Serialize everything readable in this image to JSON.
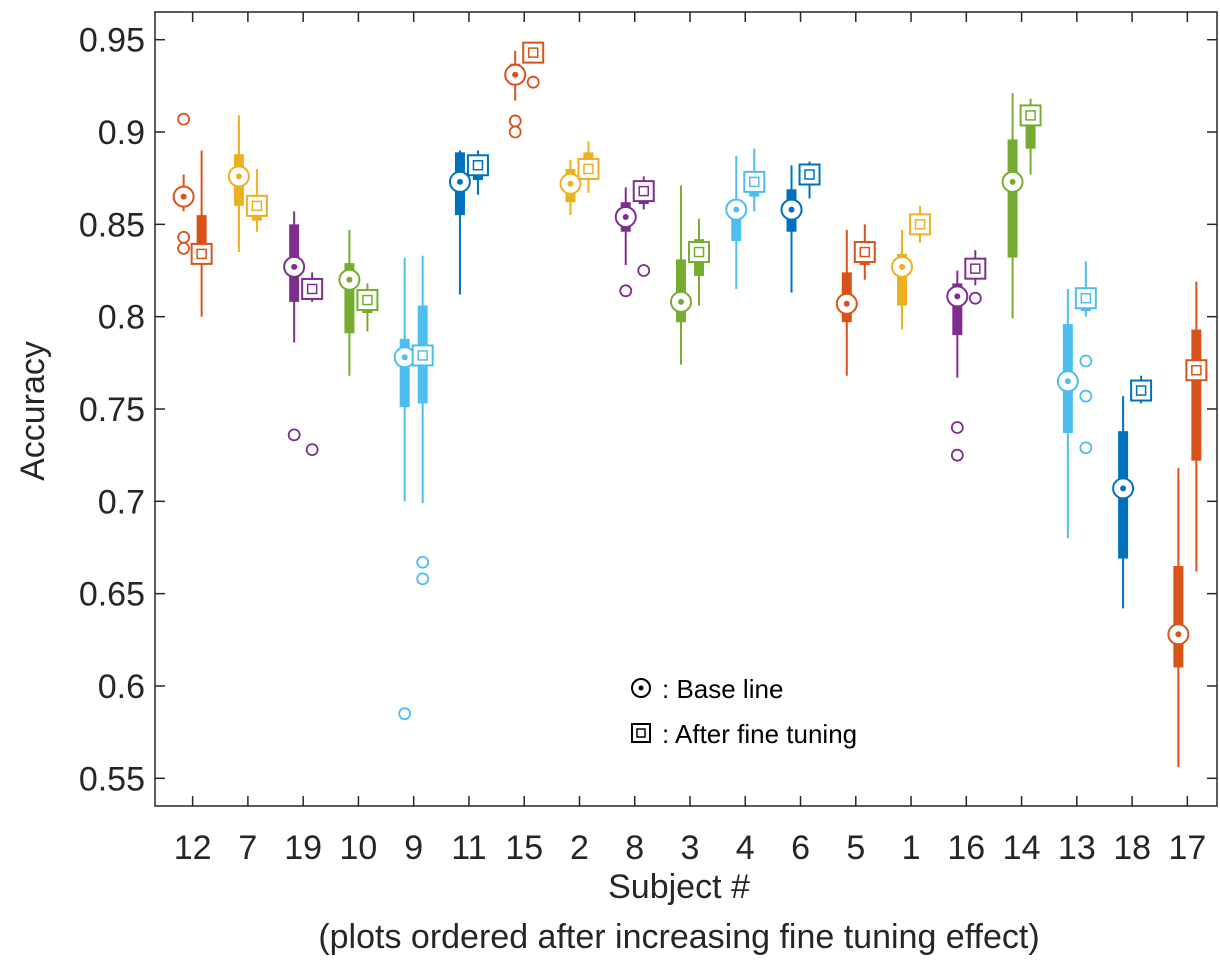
{
  "chart_data": {
    "type": "box",
    "xlabel": "Subject #",
    "xlabel_sub": "(plots ordered after increasing fine tuning effect)",
    "ylabel": "Accuracy",
    "ylim": [
      0.535,
      0.965
    ],
    "yticks": [
      0.55,
      0.6,
      0.65,
      0.7,
      0.75,
      0.8,
      0.85,
      0.9,
      0.95
    ],
    "ytick_labels": [
      "0.55",
      "0.6",
      "0.65",
      "0.7",
      "0.75",
      "0.8",
      "0.85",
      "0.9",
      "0.95"
    ],
    "legend": {
      "placement": "lower-center",
      "entries": [
        {
          "marker": "circle-dot",
          "label": ": Base line"
        },
        {
          "marker": "square-dot",
          "label": ": After fine tuning"
        }
      ]
    },
    "series": [
      {
        "name": "Base line",
        "marker": "circle"
      },
      {
        "name": "After fine tuning",
        "marker": "square"
      }
    ],
    "subjects": [
      {
        "label": "12",
        "color": "#D95319",
        "base": {
          "wl": 0.857,
          "q1": 0.861,
          "med": 0.865,
          "q3": 0.869,
          "wh": 0.877,
          "outliers": [
            0.907,
            0.843,
            0.837
          ]
        },
        "tuned": {
          "wl": 0.8,
          "q1": 0.83,
          "med": 0.834,
          "q3": 0.855,
          "wh": 0.89,
          "outliers": []
        }
      },
      {
        "label": "7",
        "color": "#EDB120",
        "base": {
          "wl": 0.835,
          "q1": 0.86,
          "med": 0.876,
          "q3": 0.888,
          "wh": 0.909,
          "outliers": []
        },
        "tuned": {
          "wl": 0.846,
          "q1": 0.852,
          "med": 0.86,
          "q3": 0.866,
          "wh": 0.88,
          "outliers": []
        }
      },
      {
        "label": "19",
        "color": "#7E2F8E",
        "base": {
          "wl": 0.786,
          "q1": 0.808,
          "med": 0.827,
          "q3": 0.85,
          "wh": 0.857,
          "outliers": [
            0.736
          ]
        },
        "tuned": {
          "wl": 0.808,
          "q1": 0.812,
          "med": 0.815,
          "q3": 0.82,
          "wh": 0.824,
          "outliers": [
            0.728
          ]
        }
      },
      {
        "label": "10",
        "color": "#77AC30",
        "base": {
          "wl": 0.768,
          "q1": 0.791,
          "med": 0.82,
          "q3": 0.829,
          "wh": 0.847,
          "outliers": []
        },
        "tuned": {
          "wl": 0.792,
          "q1": 0.802,
          "med": 0.809,
          "q3": 0.814,
          "wh": 0.818,
          "outliers": []
        }
      },
      {
        "label": "9",
        "color": "#4DBEEE",
        "base": {
          "wl": 0.7,
          "q1": 0.751,
          "med": 0.778,
          "q3": 0.788,
          "wh": 0.832,
          "outliers": [
            0.585
          ]
        },
        "tuned": {
          "wl": 0.699,
          "q1": 0.753,
          "med": 0.779,
          "q3": 0.806,
          "wh": 0.833,
          "outliers": [
            0.667,
            0.658
          ]
        }
      },
      {
        "label": "11",
        "color": "#0072BD",
        "base": {
          "wl": 0.812,
          "q1": 0.855,
          "med": 0.873,
          "q3": 0.889,
          "wh": 0.89,
          "outliers": []
        },
        "tuned": {
          "wl": 0.866,
          "q1": 0.874,
          "med": 0.882,
          "q3": 0.886,
          "wh": 0.89,
          "outliers": []
        }
      },
      {
        "label": "15",
        "color": "#D95319",
        "base": {
          "wl": 0.917,
          "q1": 0.926,
          "med": 0.931,
          "q3": 0.937,
          "wh": 0.944,
          "outliers": [
            0.906,
            0.9
          ]
        },
        "tuned": {
          "wl": 0.938,
          "q1": 0.94,
          "med": 0.943,
          "q3": 0.946,
          "wh": 0.947,
          "outliers": [
            0.927
          ]
        }
      },
      {
        "label": "2",
        "color": "#EDB120",
        "base": {
          "wl": 0.855,
          "q1": 0.862,
          "med": 0.872,
          "q3": 0.88,
          "wh": 0.885,
          "outliers": []
        },
        "tuned": {
          "wl": 0.867,
          "q1": 0.874,
          "med": 0.88,
          "q3": 0.889,
          "wh": 0.895,
          "outliers": []
        }
      },
      {
        "label": "8",
        "color": "#7E2F8E",
        "base": {
          "wl": 0.828,
          "q1": 0.846,
          "med": 0.854,
          "q3": 0.862,
          "wh": 0.87,
          "outliers": [
            0.814
          ]
        },
        "tuned": {
          "wl": 0.858,
          "q1": 0.861,
          "med": 0.868,
          "q3": 0.871,
          "wh": 0.876,
          "outliers": [
            0.825
          ]
        }
      },
      {
        "label": "3",
        "color": "#77AC30",
        "base": {
          "wl": 0.774,
          "q1": 0.797,
          "med": 0.808,
          "q3": 0.831,
          "wh": 0.871,
          "outliers": []
        },
        "tuned": {
          "wl": 0.806,
          "q1": 0.822,
          "med": 0.835,
          "q3": 0.842,
          "wh": 0.853,
          "outliers": []
        }
      },
      {
        "label": "4",
        "color": "#4DBEEE",
        "base": {
          "wl": 0.815,
          "q1": 0.841,
          "med": 0.858,
          "q3": 0.863,
          "wh": 0.887,
          "outliers": []
        },
        "tuned": {
          "wl": 0.857,
          "q1": 0.865,
          "med": 0.873,
          "q3": 0.878,
          "wh": 0.891,
          "outliers": []
        }
      },
      {
        "label": "6",
        "color": "#0072BD",
        "base": {
          "wl": 0.813,
          "q1": 0.846,
          "med": 0.858,
          "q3": 0.869,
          "wh": 0.882,
          "outliers": []
        },
        "tuned": {
          "wl": 0.864,
          "q1": 0.871,
          "med": 0.877,
          "q3": 0.882,
          "wh": 0.884,
          "outliers": []
        }
      },
      {
        "label": "5",
        "color": "#D95319",
        "base": {
          "wl": 0.768,
          "q1": 0.797,
          "med": 0.807,
          "q3": 0.824,
          "wh": 0.847,
          "outliers": []
        },
        "tuned": {
          "wl": 0.82,
          "q1": 0.828,
          "med": 0.835,
          "q3": 0.841,
          "wh": 0.85,
          "outliers": []
        }
      },
      {
        "label": "1",
        "color": "#EDB120",
        "base": {
          "wl": 0.793,
          "q1": 0.806,
          "med": 0.827,
          "q3": 0.834,
          "wh": 0.847,
          "outliers": []
        },
        "tuned": {
          "wl": 0.84,
          "q1": 0.845,
          "med": 0.85,
          "q3": 0.855,
          "wh": 0.86,
          "outliers": []
        }
      },
      {
        "label": "16",
        "color": "#7E2F8E",
        "base": {
          "wl": 0.767,
          "q1": 0.79,
          "med": 0.811,
          "q3": 0.818,
          "wh": 0.825,
          "outliers": [
            0.74,
            0.725
          ]
        },
        "tuned": {
          "wl": 0.817,
          "q1": 0.821,
          "med": 0.826,
          "q3": 0.83,
          "wh": 0.836,
          "outliers": [
            0.81
          ]
        }
      },
      {
        "label": "14",
        "color": "#77AC30",
        "base": {
          "wl": 0.799,
          "q1": 0.832,
          "med": 0.873,
          "q3": 0.896,
          "wh": 0.921,
          "outliers": []
        },
        "tuned": {
          "wl": 0.877,
          "q1": 0.891,
          "med": 0.909,
          "q3": 0.914,
          "wh": 0.918,
          "outliers": []
        }
      },
      {
        "label": "13",
        "color": "#4DBEEE",
        "base": {
          "wl": 0.68,
          "q1": 0.737,
          "med": 0.765,
          "q3": 0.796,
          "wh": 0.815,
          "outliers": []
        },
        "tuned": {
          "wl": 0.8,
          "q1": 0.803,
          "med": 0.81,
          "q3": 0.815,
          "wh": 0.83,
          "outliers": [
            0.776,
            0.757,
            0.729
          ]
        }
      },
      {
        "label": "18",
        "color": "#0072BD",
        "base": {
          "wl": 0.642,
          "q1": 0.669,
          "med": 0.707,
          "q3": 0.738,
          "wh": 0.757,
          "outliers": []
        },
        "tuned": {
          "wl": 0.753,
          "q1": 0.756,
          "med": 0.76,
          "q3": 0.764,
          "wh": 0.768,
          "outliers": []
        }
      },
      {
        "label": "17",
        "color": "#D95319",
        "base": {
          "wl": 0.556,
          "q1": 0.61,
          "med": 0.628,
          "q3": 0.665,
          "wh": 0.718,
          "outliers": []
        },
        "tuned": {
          "wl": 0.662,
          "q1": 0.722,
          "med": 0.771,
          "q3": 0.793,
          "wh": 0.819,
          "outliers": []
        }
      }
    ]
  }
}
